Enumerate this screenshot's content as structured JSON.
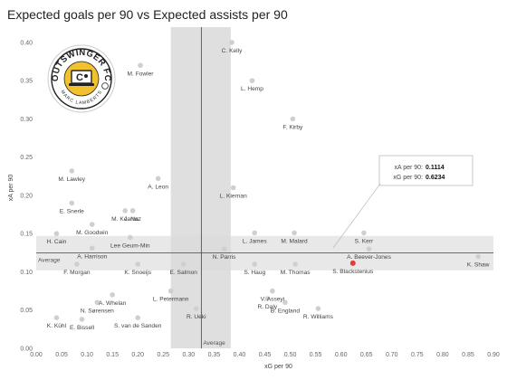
{
  "chart_data": {
    "type": "scatter",
    "title": "Expected goals per 90 vs Expected assists per 90",
    "xlabel": "xG per 90",
    "ylabel": "xA per 90",
    "xlim": [
      0.0,
      0.9
    ],
    "ylim": [
      0.0,
      0.42
    ],
    "x_ticks": [
      "0.00",
      "0.05",
      "0.10",
      "0.15",
      "0.20",
      "0.25",
      "0.30",
      "0.35",
      "0.40",
      "0.45",
      "0.50",
      "0.55",
      "0.60",
      "0.65",
      "0.70",
      "0.75",
      "0.80",
      "0.85",
      "0.90"
    ],
    "y_ticks": [
      "0.00",
      "0.05",
      "0.10",
      "0.15",
      "0.20",
      "0.25",
      "0.30",
      "0.35",
      "0.40"
    ],
    "grid": false,
    "average": {
      "x": 0.325,
      "y": 0.125,
      "label": "Average"
    },
    "average_band": {
      "x": [
        0.265,
        0.383
      ],
      "y": [
        0.102,
        0.147
      ]
    },
    "colors": {
      "point": "#cfcfcf",
      "highlight": "#e03c3c",
      "band": "#d9d9d9",
      "avg_line": "#444444"
    },
    "highlight": {
      "name": "S. Blackstenius",
      "tooltip": {
        "xa_label": "xA per 90:",
        "xa_value": "0.1114",
        "xg_label": "xG per 90:",
        "xg_value": "0.6234"
      }
    },
    "points": [
      {
        "name": "C. Kelly",
        "x": 0.385,
        "y": 0.4
      },
      {
        "name": "M. Fowler",
        "x": 0.205,
        "y": 0.37
      },
      {
        "name": "L. Hemp",
        "x": 0.425,
        "y": 0.35
      },
      {
        "name": "F. Kirby",
        "x": 0.505,
        "y": 0.3
      },
      {
        "name": "M. Lawley",
        "x": 0.07,
        "y": 0.232
      },
      {
        "name": "A. Leon",
        "x": 0.24,
        "y": 0.222
      },
      {
        "name": "L. Kiernan",
        "x": 0.388,
        "y": 0.21
      },
      {
        "name": "E. Snerle",
        "x": 0.07,
        "y": 0.19
      },
      {
        "name": "M. Kearns",
        "x": 0.175,
        "y": 0.18
      },
      {
        "name": "J. Naz",
        "x": 0.19,
        "y": 0.18
      },
      {
        "name": "M. Goodwin",
        "x": 0.11,
        "y": 0.162
      },
      {
        "name": "L. James",
        "x": 0.43,
        "y": 0.151
      },
      {
        "name": "M. Malard",
        "x": 0.508,
        "y": 0.151
      },
      {
        "name": "S. Kerr",
        "x": 0.645,
        "y": 0.151
      },
      {
        "name": "Lee Geum-Min",
        "x": 0.185,
        "y": 0.145
      },
      {
        "name": "H. Cain",
        "x": 0.04,
        "y": 0.15
      },
      {
        "name": "A. Harrison",
        "x": 0.11,
        "y": 0.131
      },
      {
        "name": "N. Parris",
        "x": 0.37,
        "y": 0.13
      },
      {
        "name": "A. Beever-Jones",
        "x": 0.655,
        "y": 0.13
      },
      {
        "name": "K. Shaw",
        "x": 0.87,
        "y": 0.12
      },
      {
        "name": "F. Morgan",
        "x": 0.08,
        "y": 0.11
      },
      {
        "name": "K. Snoeijs",
        "x": 0.2,
        "y": 0.11
      },
      {
        "name": "E. Salmon",
        "x": 0.29,
        "y": 0.11
      },
      {
        "name": "S. Blackstenius",
        "x": 0.6234,
        "y": 0.1114
      },
      {
        "name": "S. Haug",
        "x": 0.43,
        "y": 0.11
      },
      {
        "name": "M. Thomas",
        "x": 0.51,
        "y": 0.11
      },
      {
        "name": "A. Whelan",
        "x": 0.15,
        "y": 0.07
      },
      {
        "name": "L. Petermann",
        "x": 0.265,
        "y": 0.075
      },
      {
        "name": "V. Asseyi",
        "x": 0.465,
        "y": 0.075
      },
      {
        "name": "N. Sørensen",
        "x": 0.12,
        "y": 0.06
      },
      {
        "name": "E. Bissell",
        "x": 0.09,
        "y": 0.038
      },
      {
        "name": "B. England",
        "x": 0.49,
        "y": 0.06
      },
      {
        "name": "R. Daly",
        "x": 0.455,
        "y": 0.065
      },
      {
        "name": "S. van de Sanden",
        "x": 0.2,
        "y": 0.04
      },
      {
        "name": "R. Ueki",
        "x": 0.315,
        "y": 0.052
      },
      {
        "name": "R. Williams",
        "x": 0.555,
        "y": 0.052
      },
      {
        "name": "K. Kühl",
        "x": 0.04,
        "y": 0.04
      }
    ]
  },
  "logo": {
    "top_text": "OUTSWINGER FC",
    "bottom_text": "MARC LAMBERTS",
    "icon": "laptop-ball-icon"
  }
}
